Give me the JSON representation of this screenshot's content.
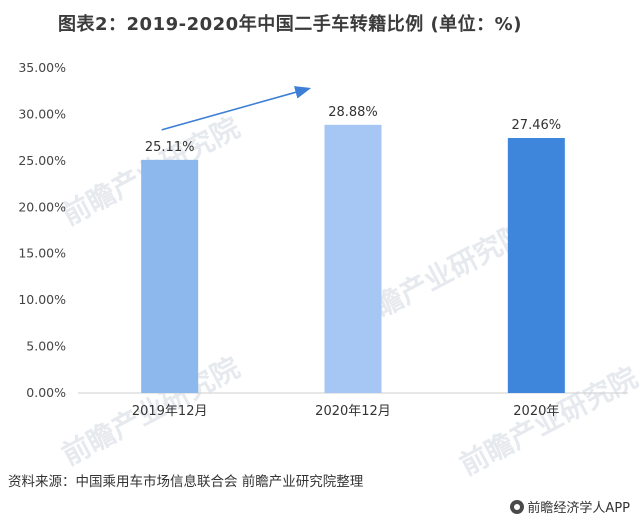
{
  "header": {
    "title": "图表2：2019-2020年中国二手车转籍比例 (单位：%)"
  },
  "chart_data": {
    "type": "bar",
    "title": "图表2：2019-2020年中国二手车转籍比例 (单位：%)",
    "categories": [
      "2019年12月",
      "2020年12月",
      "2020年"
    ],
    "values": [
      25.11,
      28.88,
      27.46
    ],
    "data_labels": [
      "25.11%",
      "28.88%",
      "27.46%"
    ],
    "bar_colors": [
      "#8db8ee",
      "#a6c6f3",
      "#3d86dc"
    ],
    "ylim": [
      0,
      35
    ],
    "yticks": [
      "0.00%",
      "5.00%",
      "10.00%",
      "15.00%",
      "20.00%",
      "25.00%",
      "30.00%",
      "35.00%"
    ],
    "xlabel": "",
    "ylabel": "",
    "grid": false,
    "legend": "none",
    "trend_arrow_color": "#3d7fd6"
  },
  "footer": {
    "source": "资料来源：中国乘用车市场信息联合会 前瞻产业研究院整理",
    "brand": "前瞻经济学人APP",
    "brand_icon": "qianzhan-logo-icon"
  },
  "watermark": {
    "text": "前瞻产业研究院"
  }
}
